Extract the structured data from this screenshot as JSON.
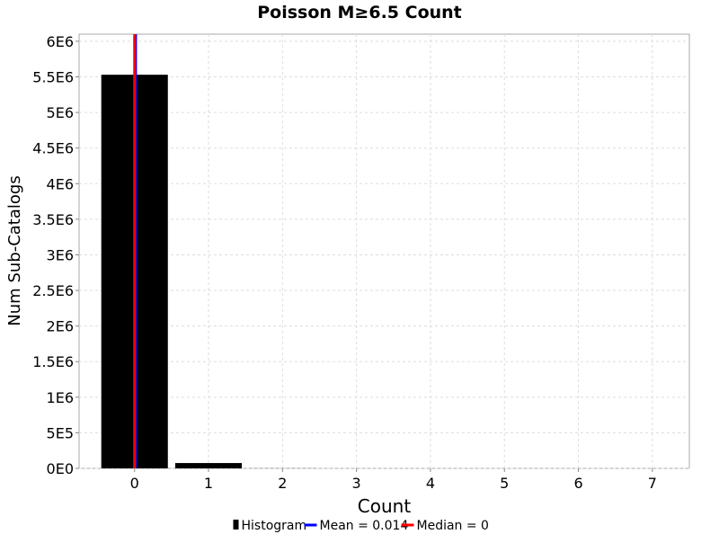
{
  "chart_data": {
    "type": "bar",
    "title": "Poisson M≥6.5 Count",
    "xlabel": "Count",
    "ylabel": "Num Sub-Catalogs",
    "xlim": [
      -0.75,
      7.5
    ],
    "ylim": [
      0,
      6100000
    ],
    "x_ticks": [
      "0",
      "1",
      "2",
      "3",
      "4",
      "5",
      "6",
      "7"
    ],
    "y_ticks": [
      {
        "value": 0,
        "label": "0E0"
      },
      {
        "value": 500000,
        "label": "5E5"
      },
      {
        "value": 1000000,
        "label": "1E6"
      },
      {
        "value": 1500000,
        "label": "1.5E6"
      },
      {
        "value": 2000000,
        "label": "2E6"
      },
      {
        "value": 2500000,
        "label": "2.5E6"
      },
      {
        "value": 3000000,
        "label": "3E6"
      },
      {
        "value": 3500000,
        "label": "3.5E6"
      },
      {
        "value": 4000000,
        "label": "4E6"
      },
      {
        "value": 4500000,
        "label": "4.5E6"
      },
      {
        "value": 5000000,
        "label": "5E6"
      },
      {
        "value": 5500000,
        "label": "5.5E6"
      },
      {
        "value": 6000000,
        "label": "6E6"
      }
    ],
    "series": [
      {
        "name": "Histogram",
        "type": "bar",
        "color": "#000000",
        "x": [
          0,
          1,
          2,
          3,
          4,
          5,
          6,
          7
        ],
        "values": [
          5530000,
          75000,
          1000,
          0,
          0,
          0,
          0,
          0
        ]
      },
      {
        "name": "Mean = 0.014",
        "type": "vline",
        "color": "#0000ff",
        "x": 0.014
      },
      {
        "name": "Median = 0",
        "type": "vline",
        "color": "#ff0000",
        "x": 0
      }
    ],
    "grid": true,
    "legend": "bottom"
  }
}
